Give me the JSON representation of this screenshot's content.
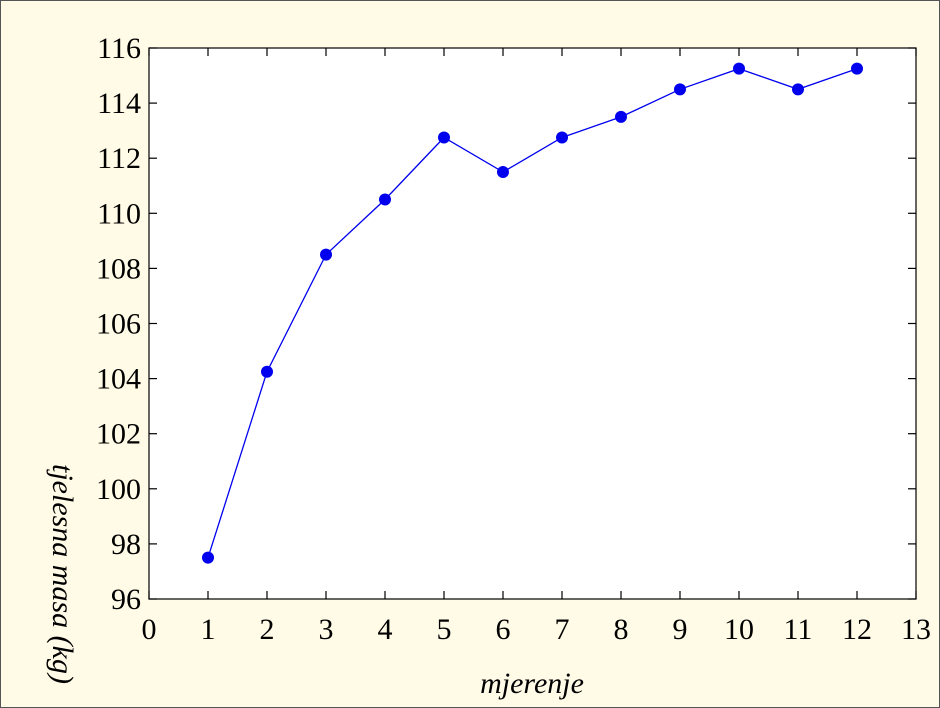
{
  "chart_data": {
    "type": "line",
    "title": "",
    "xlabel": "mjerenje",
    "ylabel": "tjelesna masa (kg)",
    "xlim": [
      0,
      13
    ],
    "ylim": [
      96,
      116
    ],
    "xticks": [
      "0",
      "1",
      "2",
      "3",
      "4",
      "5",
      "6",
      "7",
      "8",
      "9",
      "10",
      "11",
      "12",
      "13"
    ],
    "yticks": [
      "96",
      "98",
      "100",
      "102",
      "104",
      "106",
      "108",
      "110",
      "112",
      "114",
      "116"
    ],
    "grid": false,
    "legend": "none",
    "series": [
      {
        "x": [
          1,
          2,
          3,
          4,
          5,
          6,
          7,
          8,
          9,
          10,
          11,
          12
        ],
        "y": [
          97.5,
          104.25,
          108.5,
          110.5,
          112.75,
          111.5,
          112.75,
          113.5,
          114.5,
          115.25,
          114.5,
          115.25
        ],
        "color": "#0000ee",
        "marker": "circle"
      }
    ]
  },
  "colors": {
    "background": "#fffbe6",
    "plot_area": "#ffffff",
    "series": "#0000ee"
  }
}
